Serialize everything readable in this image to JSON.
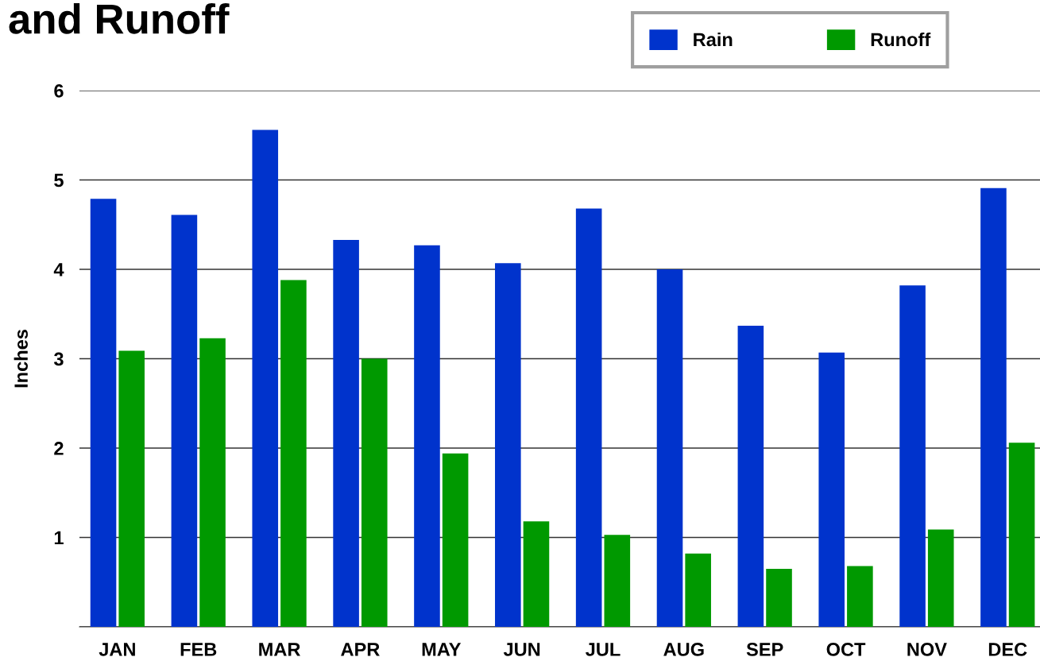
{
  "chart_data": {
    "type": "bar",
    "title": "and Runoff",
    "ylabel": "Inches",
    "categories": [
      "JAN",
      "FEB",
      "MAR",
      "APR",
      "MAY",
      "JUN",
      "JUL",
      "AUG",
      "SEP",
      "OCT",
      "NOV",
      "DEC"
    ],
    "series": [
      {
        "name": "Rain",
        "color": "#0033cc",
        "values": [
          4.79,
          4.61,
          5.56,
          4.33,
          4.27,
          4.07,
          4.68,
          4.0,
          3.37,
          3.07,
          3.82,
          4.91
        ]
      },
      {
        "name": "Runoff",
        "color": "#009900",
        "values": [
          3.09,
          3.23,
          3.88,
          3.0,
          1.94,
          1.18,
          1.03,
          0.82,
          0.65,
          0.68,
          1.09,
          2.06
        ]
      }
    ],
    "ylim": [
      0,
      6
    ],
    "yticks": [
      {
        "value": 0,
        "label": null
      },
      1,
      2,
      3,
      4,
      5,
      6
    ],
    "grid": "y",
    "legend": "top right"
  }
}
